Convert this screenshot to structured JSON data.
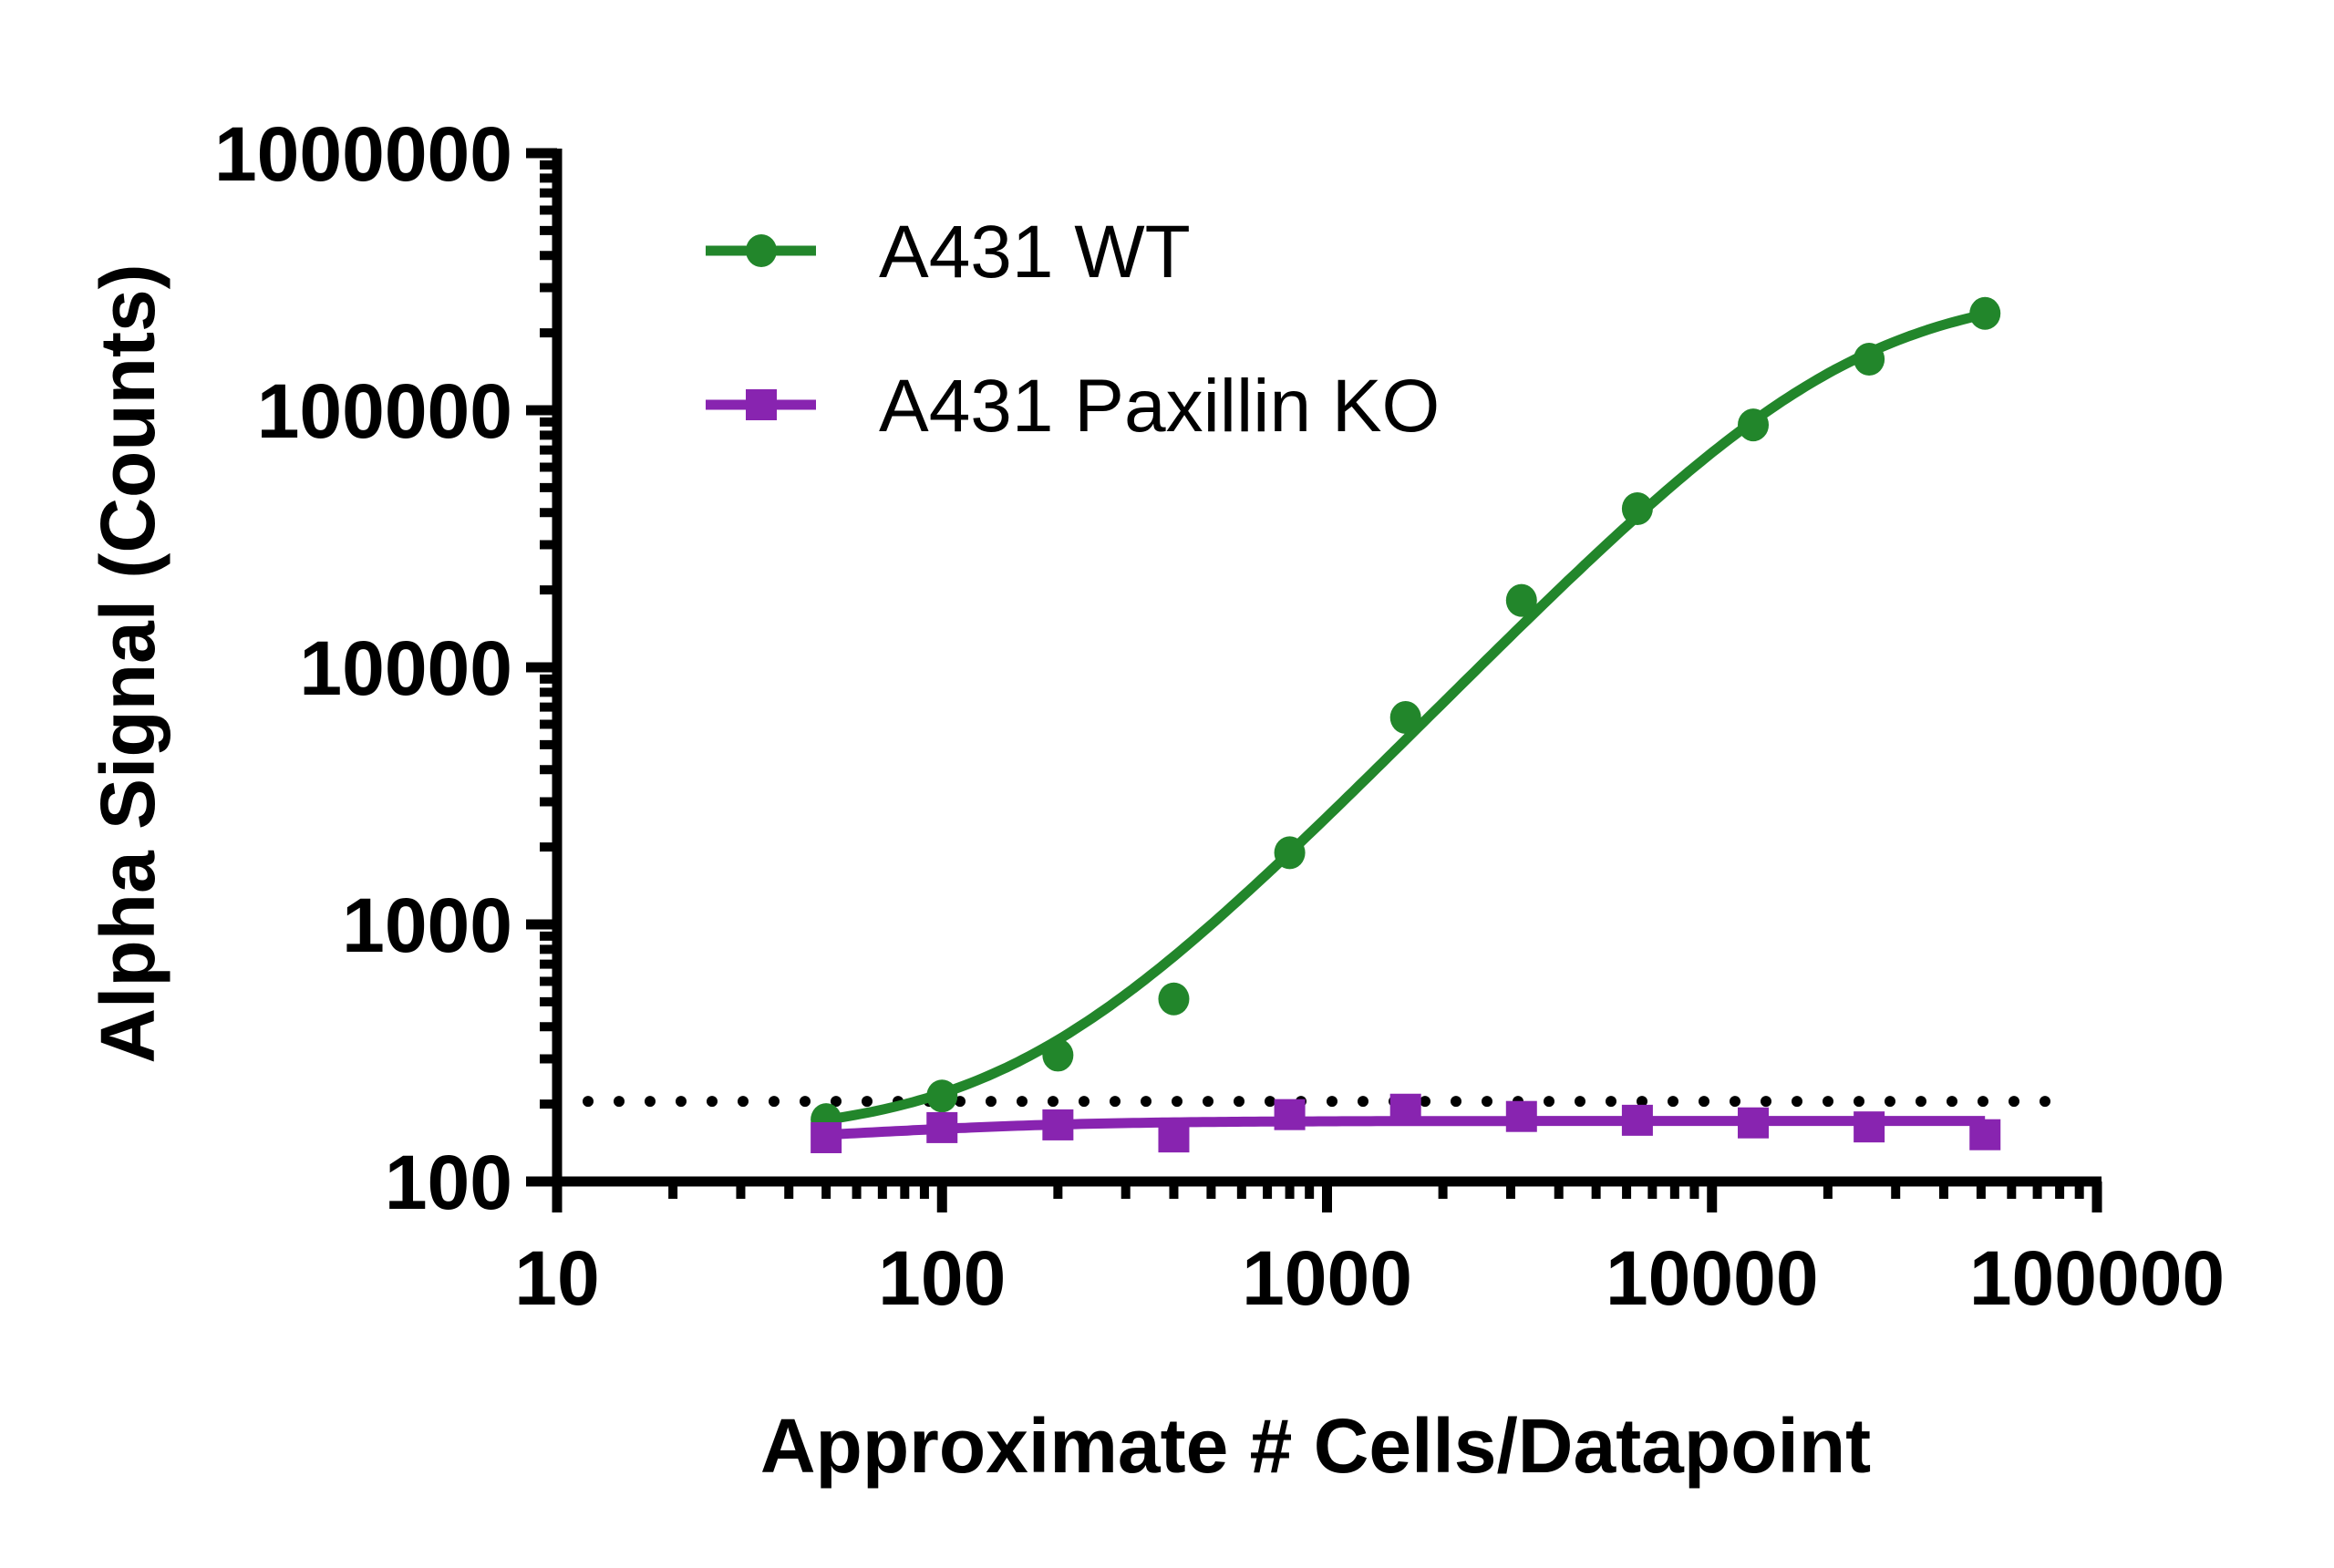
{
  "chart_data": {
    "type": "scatter",
    "title": "",
    "xlabel": "Approximate # Cells/Datapoint",
    "ylabel": "Alpha Signal (Counts)",
    "xscale": "log",
    "yscale": "log",
    "xlim": [
      10,
      100000
    ],
    "ylim": [
      100,
      1000000
    ],
    "xticks": [
      10,
      100,
      1000,
      10000,
      100000
    ],
    "xtick_labels": [
      "10",
      "100",
      "1000",
      "10000",
      "100000"
    ],
    "yticks": [
      100,
      1000,
      10000,
      100000,
      1000000
    ],
    "ytick_labels": [
      "100",
      "1000",
      "10000",
      "100000",
      "1000000"
    ],
    "grid": false,
    "legend_position": "top-left",
    "x": [
      50,
      100,
      200,
      400,
      800,
      1600,
      3200,
      6400,
      12800,
      25600,
      51200
    ],
    "series": [
      {
        "name": "A431 WT",
        "color": "#22862B",
        "marker": "circle",
        "values": [
          174,
          215,
          310,
          513,
          1900,
          6380,
          18200,
          41400,
          87700,
          158000,
          238000
        ],
        "fit": {
          "model": "4PL",
          "bottom": 150,
          "top": 300000,
          "ec50": 22000,
          "hill": 1.55
        }
      },
      {
        "name": "A431 Paxillin KO",
        "color": "#8824B0",
        "marker": "square",
        "values": [
          148,
          162,
          166,
          149,
          182,
          191,
          179,
          173,
          169,
          163,
          152
        ],
        "fit": {
          "model": "4PL",
          "bottom": 140,
          "top": 172,
          "ec50": 70,
          "hill": 1.5
        }
      }
    ],
    "reference_lines": [
      {
        "type": "horizontal",
        "y": 205,
        "style": "dotted",
        "color": "#000000",
        "x_from": 12,
        "x_to": 85000
      }
    ],
    "legend": [
      {
        "label": "A431 WT",
        "color": "#22862B",
        "marker": "circle"
      },
      {
        "label": "A431 Paxillin KO",
        "color": "#8824B0",
        "marker": "square"
      }
    ]
  }
}
